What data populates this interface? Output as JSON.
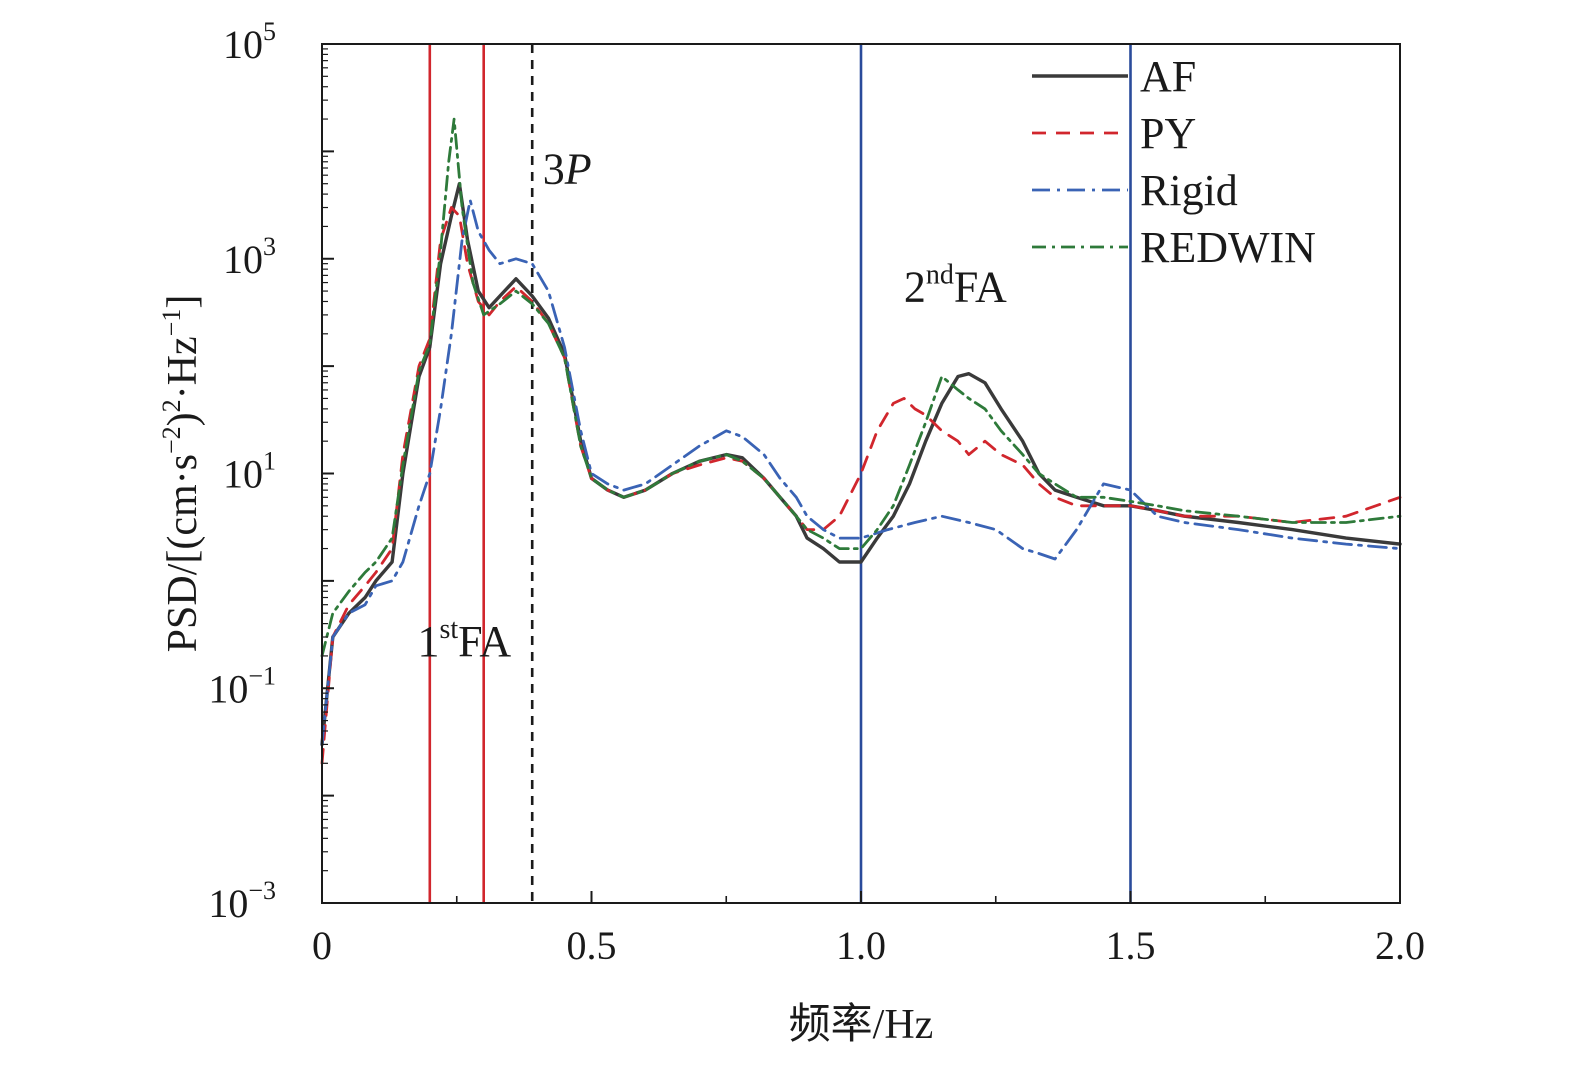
{
  "chart_data": {
    "type": "line",
    "title": "",
    "xlabel": "频率/Hz",
    "ylabel": "PSD/[(cm·s⁻²)²·Hz⁻¹]",
    "ylabel_parts": {
      "prefix": "PSD/[(cm·s",
      "exp1": "−2",
      "mid": ")",
      "exp2": "2",
      "mid2": "·Hz",
      "exp3": "−1",
      "suffix": "]"
    },
    "xlim": [
      0,
      2.0
    ],
    "ylim": [
      0.001,
      100000
    ],
    "yscale": "log",
    "grid": false,
    "legend_position": "top-right",
    "x_ticks": [
      {
        "value": 0,
        "label": "0"
      },
      {
        "value": 0.5,
        "label": "0.5"
      },
      {
        "value": 1.0,
        "label": "1.0"
      },
      {
        "value": 1.5,
        "label": "1.5"
      },
      {
        "value": 2.0,
        "label": "2.0"
      }
    ],
    "y_ticks": [
      {
        "value": 0.001,
        "base": "10",
        "exp": "−3"
      },
      {
        "value": 0.1,
        "base": "10",
        "exp": "−1"
      },
      {
        "value": 10,
        "base": "10",
        "exp": "1"
      },
      {
        "value": 1000,
        "base": "10",
        "exp": "3"
      },
      {
        "value": 100000,
        "base": "10",
        "exp": "5"
      }
    ],
    "reference_lines": [
      {
        "x": 0.2,
        "color": "#d1262d",
        "style": "solid"
      },
      {
        "x": 0.3,
        "color": "#d1262d",
        "style": "solid"
      },
      {
        "x": 0.39,
        "color": "#1a1a1a",
        "style": "dashed"
      },
      {
        "x": 1.0,
        "color": "#2a4b9b",
        "style": "solid"
      },
      {
        "x": 1.5,
        "color": "#2a4b9b",
        "style": "solid"
      }
    ],
    "annotations": [
      {
        "id": "1st",
        "pre": "1",
        "sup": "st",
        "post": "FA",
        "italic": false,
        "x": 0.264,
        "y": 0.2
      },
      {
        "id": "3p",
        "pre": "3",
        "sup": "",
        "post": "P",
        "italic": true,
        "x": 0.455,
        "y": 5000
      },
      {
        "id": "2nd",
        "pre": "2",
        "sup": "nd",
        "post": "FA",
        "italic": false,
        "x": 1.175,
        "y": 400
      }
    ],
    "series": [
      {
        "name": "AF",
        "color": "#3a3a3a",
        "dash": "",
        "width": 3.4,
        "points": [
          [
            0,
            0.03
          ],
          [
            0.02,
            0.3
          ],
          [
            0.05,
            0.5
          ],
          [
            0.08,
            0.7
          ],
          [
            0.1,
            1.0
          ],
          [
            0.13,
            1.5
          ],
          [
            0.15,
            10
          ],
          [
            0.18,
            80
          ],
          [
            0.2,
            150
          ],
          [
            0.22,
            900
          ],
          [
            0.24,
            2500
          ],
          [
            0.255,
            5000
          ],
          [
            0.27,
            1500
          ],
          [
            0.29,
            500
          ],
          [
            0.31,
            350
          ],
          [
            0.33,
            450
          ],
          [
            0.36,
            650
          ],
          [
            0.39,
            450
          ],
          [
            0.42,
            280
          ],
          [
            0.45,
            130
          ],
          [
            0.48,
            20
          ],
          [
            0.5,
            9
          ],
          [
            0.53,
            7
          ],
          [
            0.56,
            6
          ],
          [
            0.6,
            7
          ],
          [
            0.65,
            10
          ],
          [
            0.7,
            13
          ],
          [
            0.75,
            15
          ],
          [
            0.78,
            14
          ],
          [
            0.82,
            9
          ],
          [
            0.85,
            6
          ],
          [
            0.88,
            4
          ],
          [
            0.9,
            2.5
          ],
          [
            0.93,
            2.0
          ],
          [
            0.96,
            1.5
          ],
          [
            1.0,
            1.5
          ],
          [
            1.03,
            2.5
          ],
          [
            1.06,
            4
          ],
          [
            1.09,
            8
          ],
          [
            1.12,
            20
          ],
          [
            1.15,
            45
          ],
          [
            1.18,
            80
          ],
          [
            1.2,
            85
          ],
          [
            1.23,
            70
          ],
          [
            1.26,
            40
          ],
          [
            1.3,
            20
          ],
          [
            1.33,
            10
          ],
          [
            1.36,
            7
          ],
          [
            1.4,
            6
          ],
          [
            1.45,
            5
          ],
          [
            1.5,
            5
          ],
          [
            1.55,
            4.5
          ],
          [
            1.6,
            4
          ],
          [
            1.7,
            3.5
          ],
          [
            1.8,
            3
          ],
          [
            1.9,
            2.5
          ],
          [
            2.0,
            2.2
          ]
        ]
      },
      {
        "name": "PY",
        "color": "#d1262d",
        "dash": "14,10",
        "width": 2.8,
        "points": [
          [
            0,
            0.02
          ],
          [
            0.02,
            0.3
          ],
          [
            0.05,
            0.6
          ],
          [
            0.08,
            0.9
          ],
          [
            0.1,
            1.2
          ],
          [
            0.13,
            2
          ],
          [
            0.15,
            15
          ],
          [
            0.18,
            100
          ],
          [
            0.2,
            180
          ],
          [
            0.22,
            1500
          ],
          [
            0.24,
            3000
          ],
          [
            0.255,
            2500
          ],
          [
            0.27,
            900
          ],
          [
            0.29,
            400
          ],
          [
            0.31,
            300
          ],
          [
            0.33,
            400
          ],
          [
            0.36,
            550
          ],
          [
            0.39,
            400
          ],
          [
            0.42,
            250
          ],
          [
            0.45,
            120
          ],
          [
            0.48,
            18
          ],
          [
            0.5,
            9
          ],
          [
            0.53,
            7
          ],
          [
            0.56,
            6
          ],
          [
            0.6,
            7
          ],
          [
            0.65,
            10
          ],
          [
            0.7,
            12
          ],
          [
            0.75,
            14
          ],
          [
            0.78,
            13
          ],
          [
            0.82,
            9
          ],
          [
            0.85,
            6
          ],
          [
            0.88,
            4
          ],
          [
            0.9,
            3
          ],
          [
            0.93,
            3
          ],
          [
            0.96,
            4
          ],
          [
            1.0,
            10
          ],
          [
            1.03,
            25
          ],
          [
            1.06,
            45
          ],
          [
            1.08,
            50
          ],
          [
            1.1,
            40
          ],
          [
            1.12,
            35
          ],
          [
            1.15,
            25
          ],
          [
            1.18,
            20
          ],
          [
            1.2,
            15
          ],
          [
            1.23,
            20
          ],
          [
            1.26,
            15
          ],
          [
            1.3,
            12
          ],
          [
            1.33,
            8
          ],
          [
            1.36,
            6
          ],
          [
            1.4,
            5
          ],
          [
            1.45,
            5
          ],
          [
            1.5,
            5
          ],
          [
            1.55,
            4.5
          ],
          [
            1.6,
            4
          ],
          [
            1.7,
            4
          ],
          [
            1.8,
            3.5
          ],
          [
            1.9,
            4
          ],
          [
            2.0,
            6
          ]
        ]
      },
      {
        "name": "Rigid",
        "color": "#3a63b5",
        "dash": "18,7,3,7",
        "width": 2.8,
        "points": [
          [
            0,
            0.03
          ],
          [
            0.02,
            0.3
          ],
          [
            0.05,
            0.5
          ],
          [
            0.08,
            0.6
          ],
          [
            0.1,
            0.9
          ],
          [
            0.13,
            1.0
          ],
          [
            0.15,
            1.5
          ],
          [
            0.18,
            5
          ],
          [
            0.2,
            10
          ],
          [
            0.22,
            40
          ],
          [
            0.24,
            200
          ],
          [
            0.26,
            1500
          ],
          [
            0.275,
            3500
          ],
          [
            0.29,
            1800
          ],
          [
            0.31,
            1200
          ],
          [
            0.33,
            900
          ],
          [
            0.36,
            1000
          ],
          [
            0.39,
            900
          ],
          [
            0.42,
            500
          ],
          [
            0.45,
            150
          ],
          [
            0.48,
            25
          ],
          [
            0.5,
            10
          ],
          [
            0.53,
            8
          ],
          [
            0.56,
            7
          ],
          [
            0.6,
            8
          ],
          [
            0.65,
            12
          ],
          [
            0.7,
            18
          ],
          [
            0.75,
            25
          ],
          [
            0.78,
            22
          ],
          [
            0.82,
            15
          ],
          [
            0.85,
            9
          ],
          [
            0.88,
            6
          ],
          [
            0.9,
            4
          ],
          [
            0.93,
            3
          ],
          [
            0.96,
            2.5
          ],
          [
            1.0,
            2.5
          ],
          [
            1.05,
            3
          ],
          [
            1.1,
            3.5
          ],
          [
            1.15,
            4
          ],
          [
            1.2,
            3.5
          ],
          [
            1.25,
            3
          ],
          [
            1.3,
            2
          ],
          [
            1.33,
            1.8
          ],
          [
            1.36,
            1.6
          ],
          [
            1.4,
            3
          ],
          [
            1.45,
            8
          ],
          [
            1.5,
            7
          ],
          [
            1.55,
            4
          ],
          [
            1.6,
            3.5
          ],
          [
            1.7,
            3
          ],
          [
            1.8,
            2.5
          ],
          [
            1.9,
            2.2
          ],
          [
            2.0,
            2.0
          ]
        ]
      },
      {
        "name": "REDWIN",
        "color": "#2e7a3a",
        "dash": "14,6,3,6",
        "width": 2.8,
        "points": [
          [
            0,
            0.2
          ],
          [
            0.02,
            0.5
          ],
          [
            0.05,
            0.8
          ],
          [
            0.08,
            1.2
          ],
          [
            0.1,
            1.5
          ],
          [
            0.13,
            2.5
          ],
          [
            0.15,
            12
          ],
          [
            0.18,
            90
          ],
          [
            0.2,
            160
          ],
          [
            0.22,
            1200
          ],
          [
            0.235,
            8000
          ],
          [
            0.245,
            20000
          ],
          [
            0.26,
            3000
          ],
          [
            0.28,
            600
          ],
          [
            0.3,
            300
          ],
          [
            0.33,
            380
          ],
          [
            0.36,
            500
          ],
          [
            0.39,
            380
          ],
          [
            0.42,
            250
          ],
          [
            0.45,
            120
          ],
          [
            0.48,
            18
          ],
          [
            0.5,
            9
          ],
          [
            0.53,
            7
          ],
          [
            0.56,
            6
          ],
          [
            0.6,
            7
          ],
          [
            0.65,
            10
          ],
          [
            0.7,
            13
          ],
          [
            0.75,
            15
          ],
          [
            0.78,
            13
          ],
          [
            0.82,
            9
          ],
          [
            0.85,
            6
          ],
          [
            0.88,
            4
          ],
          [
            0.9,
            3
          ],
          [
            0.93,
            2.5
          ],
          [
            0.96,
            2
          ],
          [
            1.0,
            2
          ],
          [
            1.03,
            3
          ],
          [
            1.06,
            5
          ],
          [
            1.09,
            12
          ],
          [
            1.12,
            30
          ],
          [
            1.15,
            80
          ],
          [
            1.18,
            60
          ],
          [
            1.2,
            50
          ],
          [
            1.23,
            40
          ],
          [
            1.26,
            25
          ],
          [
            1.3,
            15
          ],
          [
            1.33,
            10
          ],
          [
            1.36,
            8
          ],
          [
            1.4,
            6
          ],
          [
            1.45,
            6
          ],
          [
            1.5,
            5.5
          ],
          [
            1.55,
            5
          ],
          [
            1.6,
            4.5
          ],
          [
            1.7,
            4
          ],
          [
            1.8,
            3.5
          ],
          [
            1.9,
            3.5
          ],
          [
            2.0,
            4
          ]
        ]
      }
    ]
  }
}
